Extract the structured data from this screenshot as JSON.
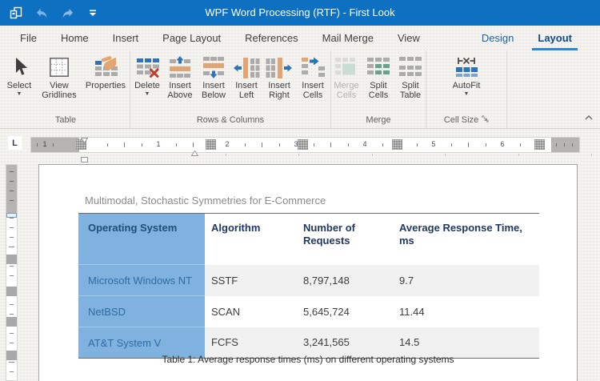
{
  "titlebar": {
    "title": "WPF Word Processing (RTF) - First Look",
    "icons": [
      "app-icon",
      "undo-icon",
      "redo-icon",
      "quick-access-dropdown-icon"
    ]
  },
  "tabs": {
    "main": [
      "File",
      "Home",
      "Insert",
      "Page Layout",
      "References",
      "Mail Merge",
      "View"
    ],
    "contextual": [
      "Design",
      "Layout"
    ],
    "active": "Layout"
  },
  "ribbon": {
    "groups": [
      {
        "label": "Table",
        "buttons": [
          {
            "label": "Select",
            "icon": "select",
            "dropdown": true
          },
          {
            "label": "View Gridlines",
            "icon": "view-gridlines"
          },
          {
            "label": "Properties",
            "icon": "properties"
          }
        ]
      },
      {
        "label": "Rows & Columns",
        "buttons": [
          {
            "label": "Delete",
            "icon": "delete",
            "dropdown": true
          },
          {
            "label": "Insert Above",
            "icon": "insert-above"
          },
          {
            "label": "Insert Below",
            "icon": "insert-below"
          },
          {
            "label": "Insert Left",
            "icon": "insert-left"
          },
          {
            "label": "Insert Right",
            "icon": "insert-right"
          },
          {
            "label": "Insert Cells",
            "icon": "insert-cells"
          }
        ]
      },
      {
        "label": "Merge",
        "buttons": [
          {
            "label": "Merge Cells",
            "icon": "merge-cells",
            "disabled": true
          },
          {
            "label": "Split Cells",
            "icon": "split-cells"
          },
          {
            "label": "Split Table",
            "icon": "split-table"
          }
        ]
      },
      {
        "label": "Cell Size",
        "launcher": true,
        "buttons": [
          {
            "label": "AutoFit",
            "icon": "autofit",
            "dropdown": true
          }
        ]
      }
    ]
  },
  "ruler": {
    "tab_selector": "L",
    "margin_number": "1",
    "numbers": [
      "1",
      "2",
      "3",
      "4",
      "5",
      "6"
    ]
  },
  "document": {
    "title": "Multimodal, Stochastic Symmetries for E-Commerce",
    "table": {
      "headers": [
        "Operating System",
        "Algorithm",
        "Number of Requests",
        "Average Response Time, ms"
      ],
      "rows": [
        [
          "Microsoft Windows NT",
          "SSTF",
          "8,797,148",
          "9.7"
        ],
        [
          "NetBSD",
          "SCAN",
          "5,645,724",
          "11.44"
        ],
        [
          "AT&T System V",
          "FCFS",
          "3,241,565",
          "14.5"
        ]
      ]
    },
    "caption": "Table 1: Average response times (ms) on different operating systems"
  },
  "colors": {
    "titlebar": "#0e70c1",
    "tab_underline": "#2b88d8",
    "table_first_column_bg": "#7fb2de",
    "table_header_text": "#1f3864",
    "table_first_column_header_text": "#1f4e79",
    "table_first_column_text": "#2e6da4",
    "alt_row_bg": "#f1f1f1",
    "ribbon_icon_blue": "#2e74b5",
    "ribbon_icon_tan": "#e0a573",
    "ribbon_icon_green": "#6ba28c",
    "ribbon_icon_red": "#c0392b"
  }
}
